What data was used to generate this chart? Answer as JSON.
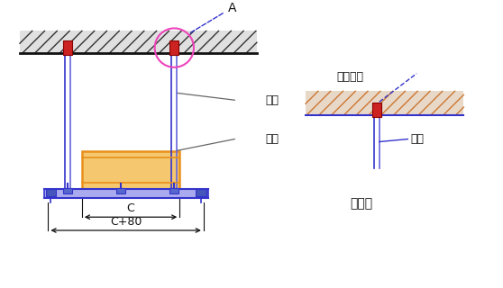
{
  "bg_color": "#ffffff",
  "blue": "#3333cc",
  "blue2": "#6666dd",
  "red": "#cc2222",
  "orange": "#e8901a",
  "orange_fill": "#f5c870",
  "pink": "#ee44bb",
  "gray": "#666666",
  "black": "#111111",
  "hatch_line_color": "#333333",
  "ceil_fill": "#e8e8e8",
  "label_圆钢": "圆钢",
  "label_桥架": "桥架",
  "label_A": "A",
  "label_C": "C",
  "label_C80": "C+80",
  "label_膨胀螺栓": "膨胀螺栓",
  "label_吊杆": "吊杆",
  "label_详图": "Ⓐ详图"
}
